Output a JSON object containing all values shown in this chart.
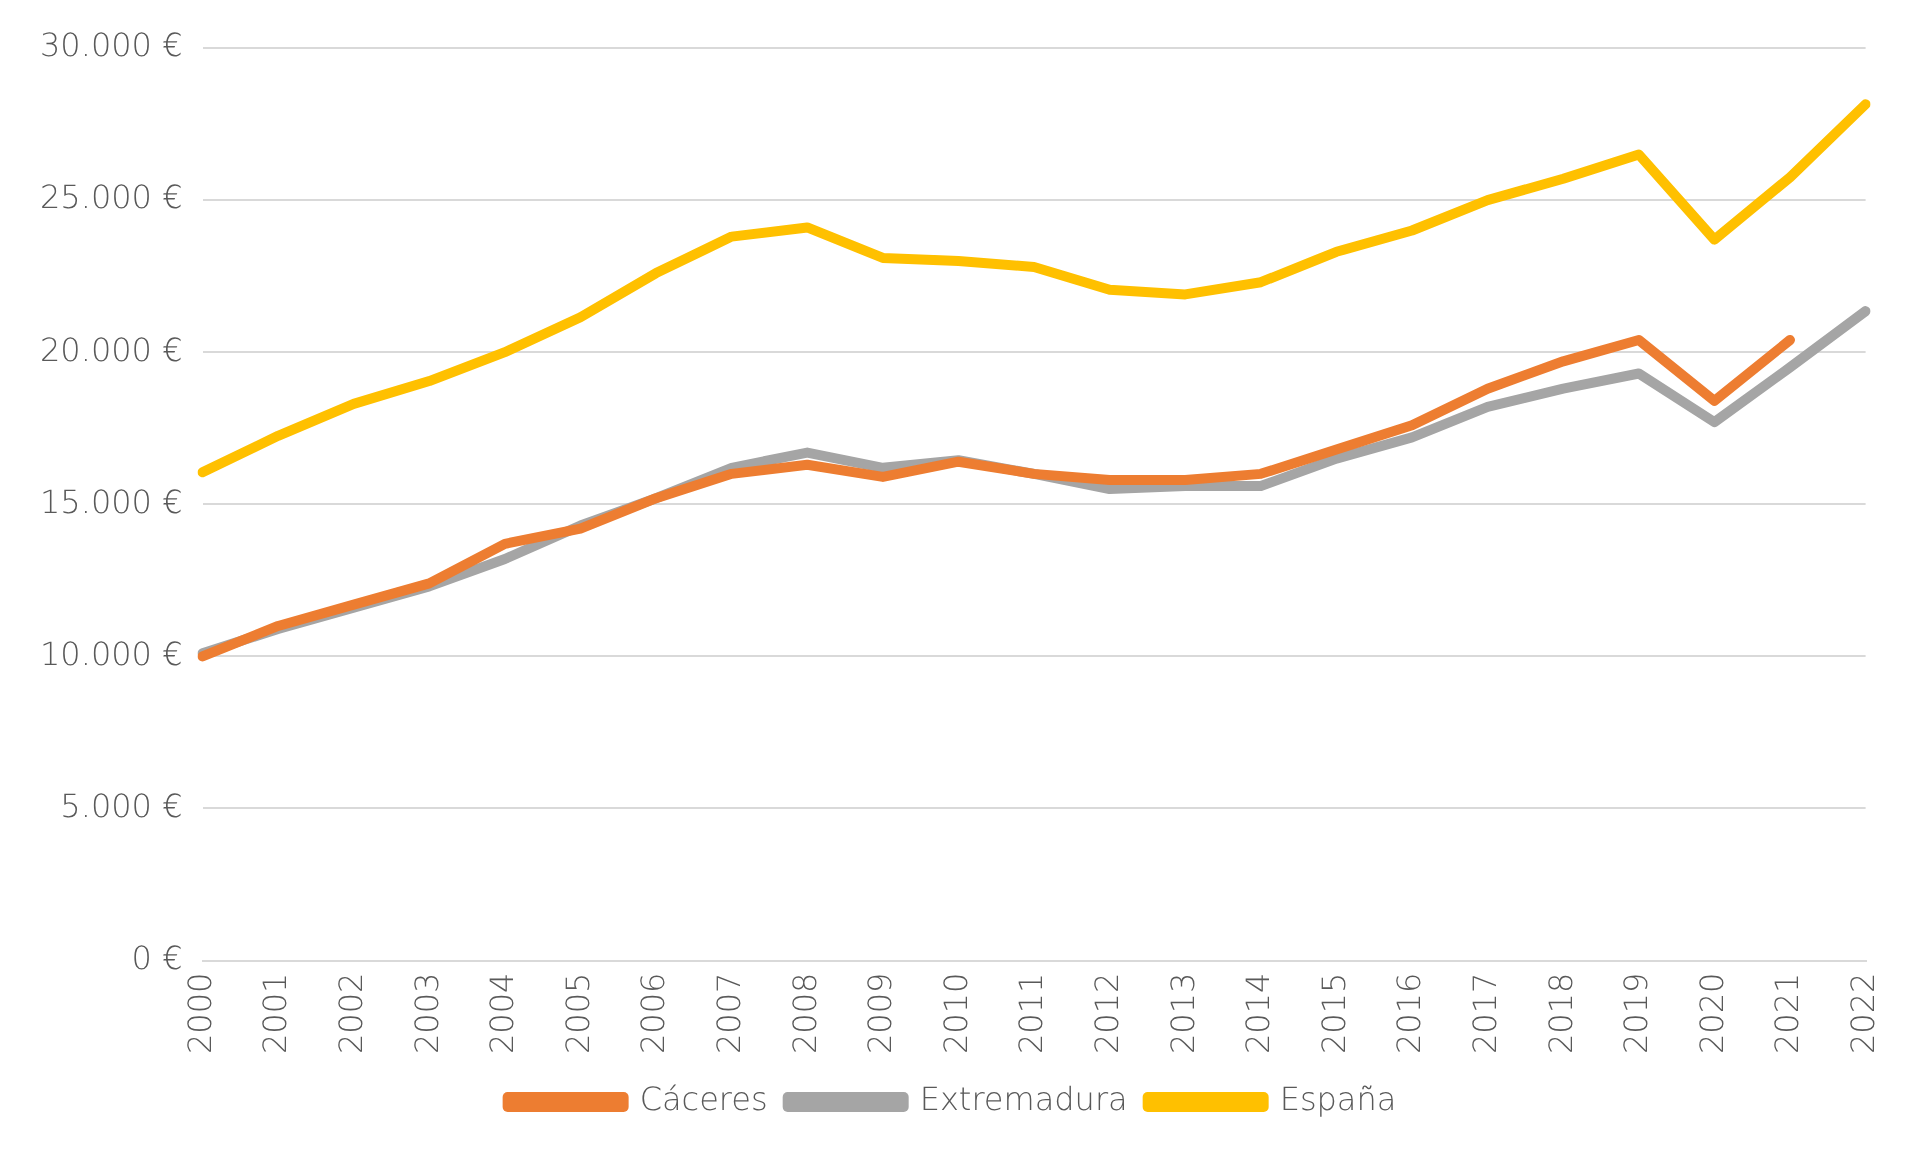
{
  "chart_data": {
    "type": "line",
    "categories": [
      "2000",
      "2001",
      "2002",
      "2003",
      "2004",
      "2005",
      "2006",
      "2007",
      "2008",
      "2009",
      "2010",
      "2011",
      "2012",
      "2013",
      "2014",
      "2015",
      "2016",
      "2017",
      "2018",
      "2019",
      "2020",
      "2021",
      "2022"
    ],
    "series": [
      {
        "name": "Cáceres",
        "color": "#ed7d31",
        "values": [
          10000,
          11000,
          11700,
          12400,
          13700,
          14200,
          15200,
          16000,
          16300,
          15900,
          16400,
          16000,
          15800,
          15800,
          16000,
          16800,
          17600,
          18800,
          19700,
          20400,
          18400,
          20400,
          null
        ]
      },
      {
        "name": "Extremadura",
        "color": "#a5a5a5",
        "values": [
          10100,
          10900,
          11600,
          12300,
          13200,
          14300,
          15200,
          16200,
          16700,
          16200,
          16450,
          16000,
          15500,
          15600,
          15600,
          16500,
          17200,
          18200,
          18800,
          19300,
          17700,
          19500,
          21350
        ]
      },
      {
        "name": "España",
        "color": "#ffc000",
        "values": [
          16050,
          17250,
          18300,
          19050,
          20000,
          21150,
          22600,
          23800,
          24100,
          23100,
          23000,
          22800,
          22050,
          21900,
          22300,
          23300,
          24000,
          25000,
          25700,
          26500,
          23700,
          25750,
          28150
        ]
      }
    ],
    "ylim": [
      0,
      30000
    ],
    "yticks": [
      {
        "value": 0,
        "label": "0 €"
      },
      {
        "value": 5000,
        "label": "5.000 €"
      },
      {
        "value": 10000,
        "label": "10.000 €"
      },
      {
        "value": 15000,
        "label": "15.000 €"
      },
      {
        "value": 20000,
        "label": "20.000 €"
      },
      {
        "value": 25000,
        "label": "25.000 €"
      },
      {
        "value": 30000,
        "label": "30.000 €"
      }
    ],
    "grid": "y",
    "legend": "bottom",
    "marker": "none",
    "line_style": "solid"
  }
}
